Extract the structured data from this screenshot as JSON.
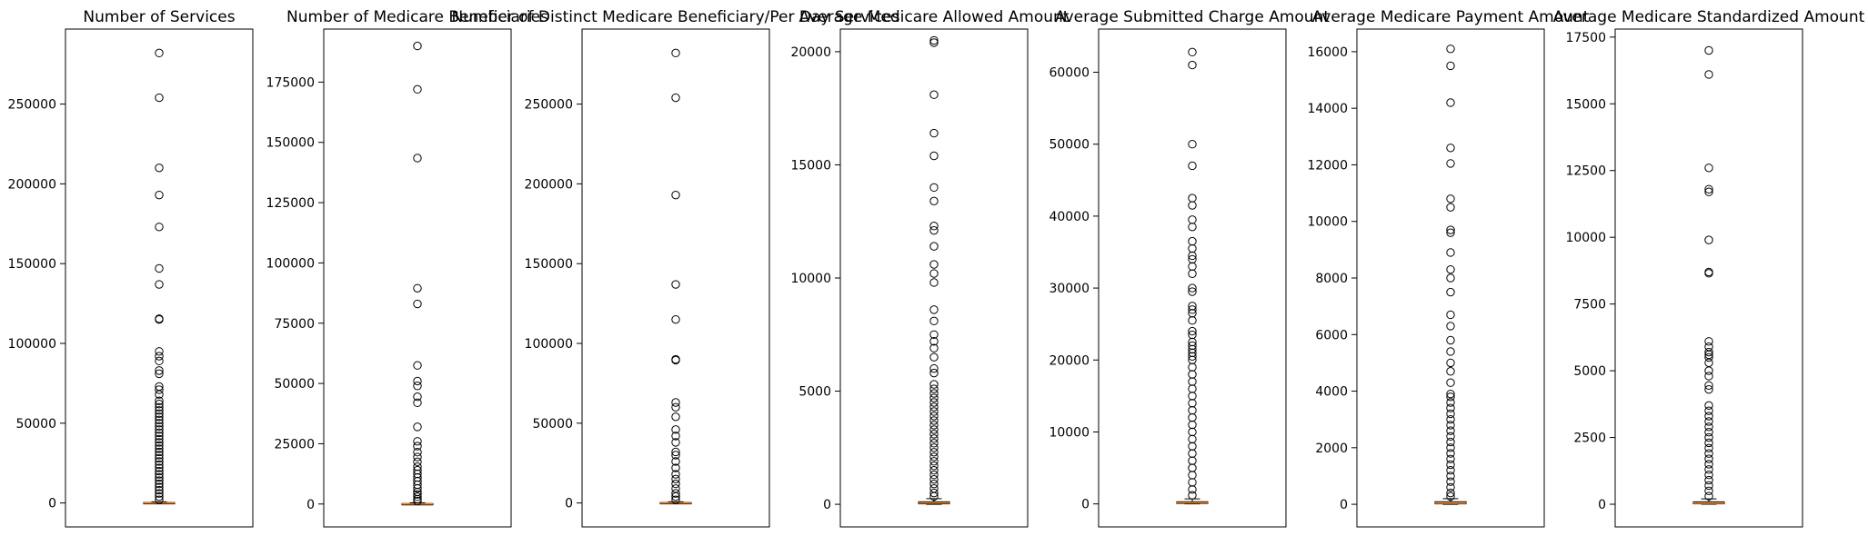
{
  "chart_data": [
    {
      "type": "box",
      "title": "Number of Services",
      "ylim": [
        -15000,
        297000
      ],
      "yticks": [
        0,
        50000,
        100000,
        150000,
        200000,
        250000
      ],
      "box": {
        "q1": 0,
        "median": 40,
        "q3": 300,
        "whisker_low": 0,
        "whisker_high": 700
      },
      "outliers": [
        282000,
        254000,
        210000,
        193000,
        173000,
        147000,
        137000,
        115500,
        115000,
        95000,
        92000,
        89000,
        83000,
        81000,
        73000,
        71000,
        68000,
        64000,
        62000,
        60000,
        58000,
        56000,
        54000,
        52000,
        50000,
        48000,
        46000,
        44000,
        42000,
        40000,
        38000,
        36000,
        34000,
        32000,
        30000,
        28000,
        26000,
        24000,
        22000,
        20000,
        18000,
        16000,
        14000,
        12000,
        10000,
        8000,
        6000,
        4000,
        2000
      ]
    },
    {
      "type": "box",
      "title": "Number of Medicare Beneficiaries",
      "ylim": [
        -9500,
        197000
      ],
      "yticks": [
        0,
        25000,
        50000,
        75000,
        100000,
        125000,
        150000,
        175000
      ],
      "box": {
        "q1": 0,
        "median": 30,
        "q3": 200,
        "whisker_low": 0,
        "whisker_high": 500
      },
      "outliers": [
        190000,
        172000,
        143500,
        89500,
        83000,
        57500,
        51000,
        49000,
        44500,
        42000,
        32000,
        26000,
        24000,
        21500,
        19500,
        17500,
        15500,
        14000,
        12500,
        11000,
        9500,
        8000,
        6500,
        5000,
        4000,
        3000,
        2000,
        1200
      ]
    },
    {
      "type": "box",
      "title": "Number of Distinct Medicare Beneficiary/Per Day Services",
      "ylim": [
        -15000,
        297000
      ],
      "yticks": [
        0,
        50000,
        100000,
        150000,
        200000,
        250000
      ],
      "box": {
        "q1": 0,
        "median": 40,
        "q3": 300,
        "whisker_low": 0,
        "whisker_high": 700
      },
      "outliers": [
        282000,
        254000,
        193000,
        137000,
        115000,
        90000,
        89500,
        63000,
        60000,
        54000,
        46000,
        42000,
        38000,
        32000,
        30000,
        26000,
        22000,
        18000,
        15000,
        12000,
        9000,
        6000,
        4000,
        2000
      ]
    },
    {
      "type": "box",
      "title": "Average Medicare Allowed Amount",
      "ylim": [
        -1000,
        21000
      ],
      "yticks": [
        0,
        5000,
        10000,
        15000,
        20000
      ],
      "box": {
        "q1": 20,
        "median": 60,
        "q3": 110,
        "whisker_low": 0,
        "whisker_high": 250
      },
      "outliers": [
        20500,
        20400,
        18100,
        16400,
        15400,
        14000,
        13400,
        12300,
        12100,
        11400,
        10600,
        10200,
        9800,
        8600,
        8100,
        7500,
        7200,
        6900,
        6500,
        6000,
        5800,
        5300,
        5100,
        4900,
        4700,
        4500,
        4300,
        4100,
        3900,
        3700,
        3500,
        3300,
        3100,
        2900,
        2700,
        2500,
        2300,
        2100,
        1900,
        1700,
        1500,
        1300,
        1100,
        900,
        700,
        500,
        350
      ]
    },
    {
      "type": "box",
      "title": "Average Submitted Charge Amount",
      "ylim": [
        -3200,
        66000
      ],
      "yticks": [
        0,
        10000,
        20000,
        30000,
        40000,
        50000,
        60000
      ],
      "box": {
        "q1": 50,
        "median": 150,
        "q3": 300,
        "whisker_low": 0,
        "whisker_high": 700
      },
      "outliers": [
        62800,
        61000,
        50000,
        47000,
        42500,
        41500,
        39500,
        38500,
        36500,
        35500,
        34500,
        34000,
        33000,
        32000,
        30000,
        29500,
        27500,
        27000,
        26500,
        25500,
        24000,
        23500,
        22500,
        22000,
        21500,
        21000,
        20500,
        20000,
        19000,
        18000,
        17000,
        16000,
        15000,
        14000,
        13000,
        12000,
        11000,
        10000,
        9000,
        8000,
        7000,
        6000,
        5000,
        4000,
        3000,
        2000,
        1200
      ]
    },
    {
      "type": "box",
      "title": "Average Medicare Payment Amount",
      "ylim": [
        -800,
        16800
      ],
      "yticks": [
        0,
        2000,
        4000,
        6000,
        8000,
        10000,
        12000,
        14000,
        16000
      ],
      "box": {
        "q1": 15,
        "median": 40,
        "q3": 90,
        "whisker_low": 0,
        "whisker_high": 200
      },
      "outliers": [
        16100,
        15500,
        14200,
        12600,
        12050,
        10800,
        10500,
        9700,
        9600,
        8900,
        8300,
        8000,
        7500,
        6700,
        6300,
        5800,
        5400,
        5000,
        4700,
        4300,
        3900,
        3800,
        3600,
        3400,
        3200,
        3000,
        2800,
        2600,
        2400,
        2200,
        2000,
        1800,
        1600,
        1400,
        1200,
        1000,
        800,
        600,
        400,
        280
      ]
    },
    {
      "type": "box",
      "title": "Average Medicare Standardized Amount",
      "ylim": [
        -850,
        17800
      ],
      "yticks": [
        0,
        2500,
        5000,
        7500,
        10000,
        12500,
        15000,
        17500
      ],
      "box": {
        "q1": 15,
        "median": 40,
        "q3": 90,
        "whisker_low": 0,
        "whisker_high": 200
      },
      "outliers": [
        17000,
        16100,
        12600,
        11800,
        11700,
        9900,
        8700,
        8650,
        6100,
        5900,
        5700,
        5600,
        5500,
        5300,
        5000,
        4800,
        4450,
        4300,
        3700,
        3500,
        3300,
        3100,
        2900,
        2700,
        2500,
        2300,
        2100,
        1900,
        1700,
        1500,
        1300,
        1100,
        900,
        700,
        500,
        300
      ]
    }
  ]
}
